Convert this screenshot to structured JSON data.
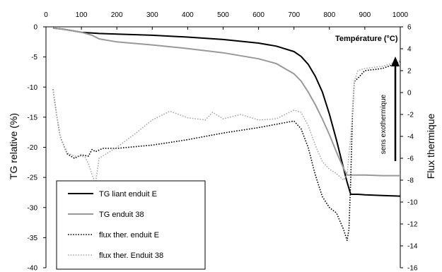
{
  "chart_data": {
    "type": "line",
    "xlabel": "Température (°C)",
    "ylabel": "TG relative (%)",
    "y2label": "Flux thermique",
    "annotation": "sens exothermique",
    "x_range": [
      0,
      1000
    ],
    "y_range": [
      -40,
      0
    ],
    "y2_range": [
      -16,
      6
    ],
    "x_ticks": [
      "0",
      "100",
      "200",
      "300",
      "400",
      "500",
      "600",
      "700",
      "800",
      "900",
      "1000"
    ],
    "y_ticks": [
      "0",
      "-5",
      "-10",
      "-15",
      "-20",
      "-25",
      "-30",
      "-35",
      "-40"
    ],
    "y2_ticks": [
      "6",
      "4",
      "2",
      "0",
      "-2",
      "-4",
      "-6",
      "-8",
      "-10",
      "-12",
      "-14",
      "-16"
    ],
    "grid": false,
    "legend_position": "bottom-left",
    "series": [
      {
        "name": "TG liant enduit E",
        "axis": "left",
        "style": "solid",
        "color": "#000000",
        "x": [
          20,
          50,
          100,
          150,
          200,
          300,
          400,
          500,
          600,
          650,
          700,
          720,
          740,
          760,
          780,
          800,
          820,
          840,
          850,
          860,
          870,
          880,
          900,
          950,
          1000
        ],
        "y": [
          -0.2,
          -0.4,
          -0.9,
          -1.1,
          -1.2,
          -1.4,
          -1.7,
          -2.1,
          -2.7,
          -3.2,
          -4.1,
          -4.9,
          -6.2,
          -8.2,
          -10.8,
          -14.5,
          -18.8,
          -23.5,
          -25.8,
          -27.8,
          -27.8,
          -27.8,
          -27.9,
          -28.0,
          -28.1
        ]
      },
      {
        "name": "TG enduit 38",
        "axis": "left",
        "style": "solid",
        "color": "#999999",
        "x": [
          20,
          50,
          100,
          130,
          150,
          200,
          300,
          400,
          500,
          600,
          650,
          700,
          720,
          740,
          760,
          780,
          800,
          820,
          840,
          850,
          860,
          870,
          900,
          950,
          1000
        ],
        "y": [
          -0.2,
          -0.4,
          -0.9,
          -1.4,
          -2.0,
          -2.5,
          -3.0,
          -3.6,
          -4.3,
          -5.3,
          -6.1,
          -7.8,
          -9.0,
          -10.8,
          -12.9,
          -15.3,
          -17.9,
          -20.8,
          -23.5,
          -24.6,
          -24.6,
          -24.6,
          -24.6,
          -24.7,
          -24.7
        ]
      },
      {
        "name": "flux ther. enduit E",
        "axis": "right",
        "style": "dotted",
        "color": "#000000",
        "x": [
          20,
          30,
          40,
          60,
          80,
          100,
          120,
          130,
          140,
          160,
          200,
          300,
          400,
          500,
          600,
          650,
          700,
          720,
          740,
          760,
          780,
          800,
          820,
          840,
          850,
          855,
          860,
          865,
          870,
          880,
          900,
          950,
          1000
        ],
        "y": [
          0.3,
          -2.0,
          -4.0,
          -5.6,
          -6.0,
          -5.7,
          -5.8,
          -5.2,
          -5.4,
          -5.1,
          -5.1,
          -4.8,
          -4.3,
          -3.7,
          -3.2,
          -2.9,
          -2.6,
          -3.3,
          -5.0,
          -7.5,
          -9.5,
          -10.5,
          -11.0,
          -12.5,
          -13.5,
          -12.5,
          -8.0,
          -2.0,
          1.0,
          1.3,
          2.0,
          2.2,
          2.8
        ]
      },
      {
        "name": "flux ther. Enduit 38",
        "axis": "right",
        "style": "dotted",
        "color": "#aaaaaa",
        "x": [
          20,
          30,
          40,
          60,
          80,
          100,
          110,
          120,
          130,
          140,
          150,
          170,
          200,
          250,
          300,
          350,
          400,
          450,
          470,
          500,
          550,
          600,
          650,
          700,
          720,
          740,
          760,
          780,
          800,
          820,
          840,
          850,
          860,
          870,
          880,
          900,
          950,
          1000
        ],
        "y": [
          0.3,
          -2.0,
          -4.0,
          -5.5,
          -5.8,
          -5.8,
          -5.9,
          -6.5,
          -7.5,
          -8.3,
          -6.0,
          -5.6,
          -5.0,
          -3.8,
          -2.5,
          -1.7,
          -2.3,
          -2.5,
          -1.8,
          -2.4,
          -2.0,
          -2.5,
          -2.4,
          -1.6,
          -1.8,
          -3.0,
          -4.8,
          -6.3,
          -7.0,
          -7.4,
          -8.0,
          -7.5,
          -4.0,
          1.0,
          2.0,
          2.2,
          2.4,
          2.9
        ]
      }
    ]
  }
}
